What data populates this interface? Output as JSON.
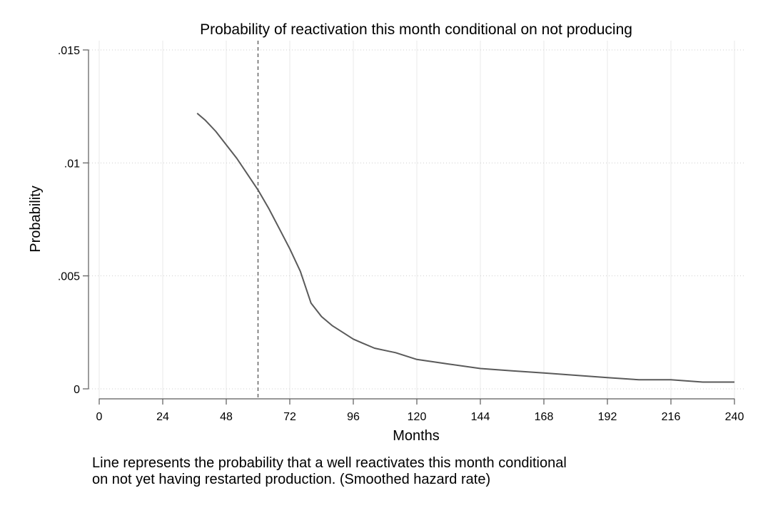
{
  "chart_data": {
    "type": "line",
    "title": "Probability of reactivation this month conditional on not producing",
    "xlabel": "Months",
    "ylabel": "Probability",
    "xlim": [
      0,
      240
    ],
    "ylim": [
      0,
      0.015
    ],
    "x_ticks": [
      0,
      24,
      48,
      72,
      96,
      120,
      144,
      168,
      192,
      216,
      240
    ],
    "x_tick_labels": [
      "0",
      "24",
      "48",
      "72",
      "96",
      "120",
      "144",
      "168",
      "192",
      "216",
      "240"
    ],
    "y_ticks": [
      0,
      0.005,
      0.01,
      0.015
    ],
    "y_tick_labels": [
      "0",
      ".005",
      ".01",
      ".015"
    ],
    "grid": true,
    "reference_line": {
      "x": 60,
      "style": "dashed"
    },
    "series": [
      {
        "x": [
          37,
          40,
          44,
          48,
          52,
          56,
          60,
          64,
          68,
          72,
          76,
          80,
          84,
          88,
          92,
          96,
          100,
          104,
          108,
          112,
          120,
          132,
          144,
          156,
          168,
          180,
          192,
          204,
          216,
          228,
          240
        ],
        "y": [
          0.0122,
          0.0119,
          0.0114,
          0.0108,
          0.0102,
          0.0095,
          0.0088,
          0.008,
          0.0071,
          0.0062,
          0.0052,
          0.0038,
          0.0032,
          0.0028,
          0.0025,
          0.0022,
          0.002,
          0.0018,
          0.0017,
          0.0016,
          0.0013,
          0.0011,
          0.0009,
          0.0008,
          0.0007,
          0.0006,
          0.0005,
          0.0004,
          0.0004,
          0.0003,
          0.0003
        ]
      }
    ]
  },
  "note": {
    "line1": "Line represents the probability that a well reactivates this month conditional",
    "line2": "on not yet having restarted production. (Smoothed hazard rate)"
  },
  "colors": {
    "line": "#5a5a5a",
    "grid": "#eaeaea",
    "axis": "#5a5a5a",
    "refline": "#6e6e6e"
  }
}
